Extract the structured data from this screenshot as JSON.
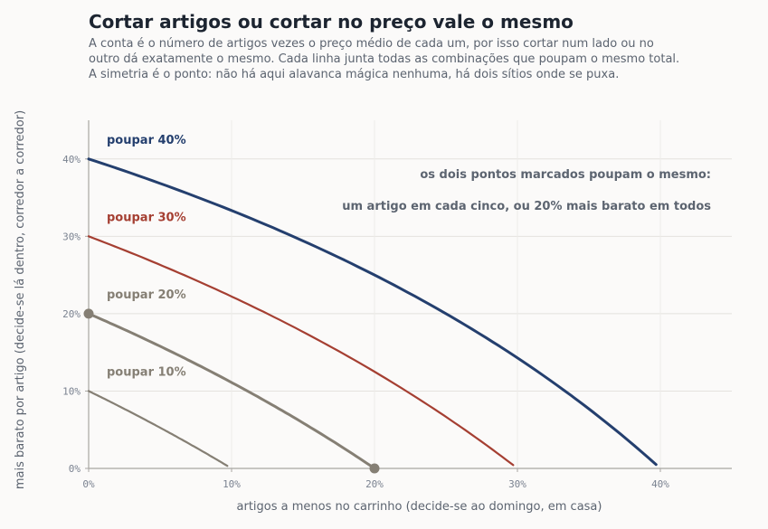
{
  "chart_data": {
    "type": "line",
    "title": "Cortar artigos ou cortar no preço vale o mesmo",
    "subtitle": [
      "A conta é o número de artigos vezes o preço médio de cada um, por isso cortar num lado ou no",
      "outro dá exatamente o mesmo. Cada linha junta todas as combinações que poupam o mesmo total.",
      "A simetria é o ponto: não há aqui alavanca mágica nenhuma, há dois sítios onde se puxa."
    ],
    "xlabel": "artigos a menos no carrinho (decide-se ao domingo, em casa)",
    "ylabel": "mais barato por artigo (decide-se lá dentro, corredor a corredor)",
    "xlim": [
      0,
      45
    ],
    "ylim": [
      0,
      45
    ],
    "x_ticks": [
      0,
      10,
      20,
      30,
      40
    ],
    "y_ticks": [
      0,
      10,
      20,
      30,
      40
    ],
    "x_tick_labels": [
      "0%",
      "10%",
      "20%",
      "30%",
      "40%"
    ],
    "y_tick_labels": [
      "0%",
      "10%",
      "20%",
      "30%",
      "40%"
    ],
    "grid": true,
    "series": [
      {
        "name": "poupar 10%",
        "saving": 10,
        "color": "#857f74",
        "emphasis": false,
        "x": [
          0,
          2.5,
          5,
          7.5,
          10
        ],
        "y": [
          10,
          7.69,
          5.26,
          2.7,
          0
        ]
      },
      {
        "name": "poupar 20%",
        "saving": 20,
        "color": "#857f74",
        "emphasis": true,
        "x": [
          0,
          5,
          10,
          15,
          20
        ],
        "y": [
          20,
          15.79,
          11.11,
          5.88,
          0
        ]
      },
      {
        "name": "poupar 30%",
        "saving": 30,
        "color": "#a53f32",
        "emphasis": false,
        "x": [
          0,
          7.5,
          15,
          22.5,
          30
        ],
        "y": [
          30,
          24.32,
          17.65,
          9.68,
          0
        ]
      },
      {
        "name": "poupar 40%",
        "saving": 40,
        "color": "#243f6e",
        "emphasis": false,
        "x": [
          0,
          10,
          20,
          30,
          40
        ],
        "y": [
          40,
          33.33,
          25,
          14.29,
          0
        ]
      }
    ],
    "highlight_points": [
      {
        "x": 0,
        "y": 20,
        "color": "#857f74"
      },
      {
        "x": 20,
        "y": 0,
        "color": "#857f74"
      }
    ],
    "annotation": [
      "os dois pontos marcados poupam o mesmo:",
      "um artigo em cada cinco, ou 20% mais barato em todos"
    ]
  }
}
